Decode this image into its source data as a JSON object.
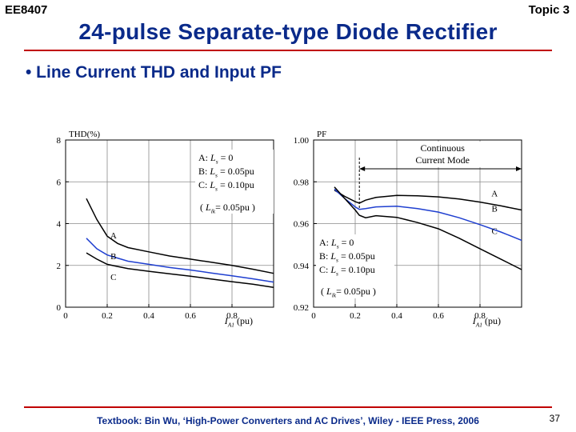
{
  "header": {
    "course": "EE8407",
    "topic": "Topic 3",
    "title": "24-pulse Separate-type Diode Rectifier"
  },
  "bullet": "• Line Current THD and Input PF",
  "footer": {
    "citation": "Textbook: Bin Wu, ‘High-Power Converters and AC Drives’, Wiley - IEEE Press, 2006",
    "page": "37"
  },
  "colors": {
    "title": "#0a2a8a",
    "rule": "#c00000",
    "curve_black": "#000000",
    "curve_blue": "#1f3fd0"
  },
  "chart_data": [
    {
      "type": "line",
      "ylabel": "THD(%)",
      "xlabel_main": "I",
      "xlabel_sub": "A1",
      "xlabel_unit": " (pu)",
      "xlim": [
        0,
        1.0
      ],
      "ylim": [
        0,
        8
      ],
      "xticks": [
        0,
        0.2,
        0.4,
        0.6,
        0.8
      ],
      "xtick_labels": [
        "0",
        "0.2",
        "0.4",
        "0.6",
        "0.8"
      ],
      "yticks": [
        0,
        2,
        4,
        6,
        8
      ],
      "ytick_labels": [
        "0",
        "2",
        "4",
        "6",
        "8"
      ],
      "grid": true,
      "legend": [
        {
          "letter": "A",
          "pre": "A: ",
          "sym": "L",
          "sub": "s",
          "post": " = 0"
        },
        {
          "letter": "B",
          "pre": "B: ",
          "sym": "L",
          "sub": "s",
          "post": " = 0.05pu"
        },
        {
          "letter": "C",
          "pre": "C: ",
          "sym": "L",
          "sub": "s",
          "post": " = 0.10pu"
        }
      ],
      "note": {
        "open": "( ",
        "sym": "L",
        "sub": "lk",
        "post": "= 0.05pu )"
      },
      "legend_position": "top-right",
      "series": [
        {
          "name": "A",
          "color": "#000000",
          "x": [
            0.1,
            0.15,
            0.2,
            0.25,
            0.3,
            0.4,
            0.5,
            0.6,
            0.7,
            0.8,
            0.9,
            1.0
          ],
          "y": [
            5.2,
            4.2,
            3.4,
            3.05,
            2.85,
            2.65,
            2.45,
            2.3,
            2.15,
            2.0,
            1.82,
            1.62
          ]
        },
        {
          "name": "B",
          "color": "#1f3fd0",
          "x": [
            0.1,
            0.15,
            0.2,
            0.25,
            0.3,
            0.4,
            0.5,
            0.6,
            0.7,
            0.8,
            0.9,
            1.0
          ],
          "y": [
            3.3,
            2.8,
            2.5,
            2.35,
            2.2,
            2.05,
            1.9,
            1.78,
            1.64,
            1.5,
            1.36,
            1.2
          ]
        },
        {
          "name": "C",
          "color": "#000000",
          "x": [
            0.1,
            0.15,
            0.2,
            0.25,
            0.3,
            0.4,
            0.5,
            0.6,
            0.7,
            0.8,
            0.9,
            1.0
          ],
          "y": [
            2.6,
            2.3,
            2.05,
            1.95,
            1.85,
            1.72,
            1.6,
            1.48,
            1.35,
            1.22,
            1.1,
            0.95
          ]
        }
      ],
      "series_labels": [
        {
          "text": "A",
          "x": 0.23,
          "y": 3.45
        },
        {
          "text": "B",
          "x": 0.23,
          "y": 2.45
        },
        {
          "text": "C",
          "x": 0.23,
          "y": 1.45
        }
      ]
    },
    {
      "type": "line",
      "ylabel": "PF",
      "xlabel_main": "I",
      "xlabel_sub": "A1",
      "xlabel_unit": " (pu)",
      "xlim": [
        0,
        1.0
      ],
      "ylim": [
        0.92,
        1.0
      ],
      "xticks": [
        0,
        0.2,
        0.4,
        0.6,
        0.8
      ],
      "xtick_labels": [
        "0",
        "0.2",
        "0.4",
        "0.6",
        "0.8"
      ],
      "yticks": [
        0.92,
        0.94,
        0.96,
        0.98,
        1.0
      ],
      "ytick_labels": [
        "0.92",
        "0.94",
        "0.96",
        "0.98",
        "1.00"
      ],
      "grid": true,
      "legend": [
        {
          "letter": "A",
          "pre": "A: ",
          "sym": "L",
          "sub": "s",
          "post": " = 0"
        },
        {
          "letter": "B",
          "pre": "B: ",
          "sym": "L",
          "sub": "s",
          "post": " = 0.05pu"
        },
        {
          "letter": "C",
          "pre": "C: ",
          "sym": "L",
          "sub": "s",
          "post": " = 0.10pu"
        }
      ],
      "note": {
        "open": "( ",
        "sym": "L",
        "sub": "lk",
        "post": "= 0.05pu )"
      },
      "legend_position": "bottom-left",
      "annotation": {
        "line1": "Continuous",
        "line2": "Current Mode",
        "x_start": 0.22,
        "x_end": 1.0
      },
      "series": [
        {
          "name": "A",
          "color": "#000000",
          "x": [
            0.1,
            0.15,
            0.2,
            0.22,
            0.25,
            0.3,
            0.4,
            0.5,
            0.6,
            0.7,
            0.8,
            0.9,
            1.0
          ],
          "y": [
            0.976,
            0.973,
            0.9705,
            0.9698,
            0.9712,
            0.9725,
            0.9735,
            0.9733,
            0.9728,
            0.9718,
            0.9703,
            0.9685,
            0.9665
          ]
        },
        {
          "name": "B",
          "color": "#1f3fd0",
          "x": [
            0.1,
            0.15,
            0.2,
            0.22,
            0.25,
            0.3,
            0.4,
            0.5,
            0.6,
            0.7,
            0.8,
            0.9,
            1.0
          ],
          "y": [
            0.9765,
            0.972,
            0.968,
            0.9668,
            0.9672,
            0.968,
            0.9683,
            0.9672,
            0.9655,
            0.9628,
            0.9595,
            0.956,
            0.952
          ]
        },
        {
          "name": "C",
          "color": "#000000",
          "x": [
            0.1,
            0.15,
            0.2,
            0.22,
            0.25,
            0.3,
            0.4,
            0.5,
            0.6,
            0.7,
            0.8,
            0.9,
            1.0
          ],
          "y": [
            0.9775,
            0.972,
            0.9665,
            0.964,
            0.9628,
            0.9638,
            0.963,
            0.9605,
            0.9575,
            0.953,
            0.948,
            0.943,
            0.938
          ]
        }
      ],
      "series_labels": [
        {
          "text": "A",
          "x": 0.87,
          "y": 0.9745
        },
        {
          "text": "B",
          "x": 0.87,
          "y": 0.9672
        },
        {
          "text": "C",
          "x": 0.87,
          "y": 0.9565
        }
      ]
    }
  ]
}
